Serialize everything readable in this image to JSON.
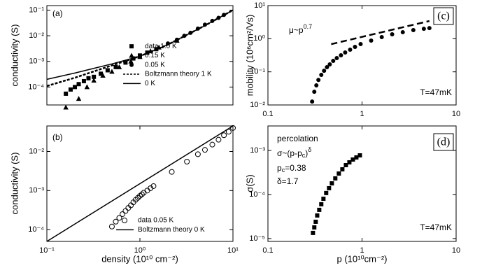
{
  "chart_data": [
    {
      "type": "scatter",
      "panel": "(a)",
      "ylabel": "conductivity (S)",
      "xscale": "log",
      "yscale": "log",
      "xlim": [
        0.1,
        10
      ],
      "ylim": [
        2e-05,
        0.15
      ],
      "yticks": [
        {
          "value": 0.1,
          "label": "10⁻¹"
        },
        {
          "value": 0.01,
          "label": "10⁻²"
        },
        {
          "value": 0.001,
          "label": "10⁻³"
        },
        {
          "value": 0.0001,
          "label": "10⁻⁴"
        }
      ],
      "legend": "lower right",
      "series": [
        {
          "name": "data 1.0 K",
          "marker": "square",
          "color": "#000000",
          "x": [
            0.16,
            0.18,
            0.2,
            0.22,
            0.25,
            0.28,
            0.32,
            0.38,
            0.45,
            0.55,
            0.7,
            0.85,
            1.0,
            1.2,
            1.5
          ],
          "values": [
            5.5e-05,
            8e-05,
            0.0001,
            0.00013,
            0.00017,
            0.00022,
            0.00025,
            0.00033,
            0.00045,
            0.0006,
            0.0009,
            0.0013,
            0.0017,
            0.0022,
            0.003
          ]
        },
        {
          "name": "0.15 K",
          "marker": "triangle",
          "color": "#000000",
          "x": [
            0.16,
            0.22,
            0.27,
            0.32,
            0.4,
            0.5,
            0.6,
            0.8,
            1.0,
            1.3,
            1.6,
            2.5
          ],
          "values": [
            1.6e-05,
            3.5e-05,
            0.0001,
            0.00018,
            0.00028,
            0.0004,
            0.0006,
            0.001,
            0.0015,
            0.0025,
            0.0035,
            0.0065
          ]
        },
        {
          "name": "0.05 K",
          "marker": "circle",
          "color": "#000000",
          "x": [
            2.0,
            2.5,
            3.0,
            3.5,
            4.2,
            5.0,
            6.0,
            7.0,
            8.0
          ],
          "values": [
            0.005,
            0.007,
            0.01,
            0.013,
            0.019,
            0.027,
            0.038,
            0.05,
            0.065
          ]
        },
        {
          "name": "Boltzmann theory 1 K",
          "style": "dashed",
          "color": "#000000",
          "x": [
            0.1,
            0.2,
            0.5,
            1,
            2,
            5,
            10
          ],
          "values": [
            0.00011,
            0.00023,
            0.0007,
            0.0016,
            0.0045,
            0.025,
            0.1
          ]
        },
        {
          "name": "0 K",
          "style": "solid",
          "color": "#000000",
          "x": [
            0.1,
            0.2,
            0.5,
            1,
            2,
            5,
            10
          ],
          "values": [
            0.0002,
            0.00035,
            0.0008,
            0.0016,
            0.0045,
            0.025,
            0.1
          ]
        }
      ]
    },
    {
      "type": "scatter",
      "panel": "(b)",
      "ylabel": "conductivity (S)",
      "xlabel": "density (10¹⁰ cm⁻²)",
      "xscale": "log",
      "yscale": "log",
      "xlim": [
        0.1,
        10
      ],
      "ylim": [
        5e-05,
        0.045
      ],
      "xticks": [
        {
          "value": 0.1,
          "label": "10⁻¹"
        },
        {
          "value": 1,
          "label": "10⁰"
        },
        {
          "value": 10,
          "label": "10¹"
        }
      ],
      "yticks": [
        {
          "value": 0.01,
          "label": "10⁻²"
        },
        {
          "value": 0.001,
          "label": "10⁻³"
        },
        {
          "value": 0.0001,
          "label": "10⁻⁴"
        }
      ],
      "legend": "lower right",
      "series": [
        {
          "name": "data 0.05 K",
          "marker": "open-circle",
          "color": "#000000",
          "x": [
            0.5,
            0.55,
            0.6,
            0.65,
            0.7,
            0.75,
            0.8,
            0.85,
            0.9,
            0.95,
            1.0,
            1.05,
            1.1,
            1.2,
            1.3,
            1.4,
            2.2,
            3.2,
            4.2,
            5,
            6,
            7,
            8,
            9,
            10
          ],
          "values": [
            0.00012,
            0.00016,
            0.0002,
            0.00025,
            0.0003,
            0.00036,
            0.00042,
            0.0005,
            0.00058,
            0.00065,
            0.00073,
            0.0008,
            0.00088,
            0.001,
            0.00115,
            0.0013,
            0.003,
            0.0055,
            0.0085,
            0.011,
            0.015,
            0.02,
            0.026,
            0.032,
            0.04
          ]
        },
        {
          "name": "Boltzmann theory 0 K",
          "style": "solid",
          "color": "#000000",
          "x": [
            0.1,
            1,
            10
          ],
          "values": [
            5e-05,
            0.0015,
            0.045
          ]
        }
      ]
    },
    {
      "type": "scatter",
      "panel": "(c)",
      "ylabel": "mobility (10⁶cm²/Vs)",
      "xscale": "log",
      "yscale": "log",
      "xlim": [
        0.1,
        10
      ],
      "ylim": [
        0.01,
        10
      ],
      "xticks": [
        0.1,
        1,
        10
      ],
      "yticks": [
        {
          "value": 10,
          "label": "10¹"
        },
        {
          "value": 1,
          "label": "10⁰"
        },
        {
          "value": 0.1,
          "label": "10⁻¹"
        },
        {
          "value": 0.01,
          "label": "10⁻²"
        }
      ],
      "annotations": {
        "law": [
          "μ~p",
          "0.7"
        ],
        "temperature": "T=47mK"
      },
      "series": [
        {
          "marker": "circle",
          "color": "#000000",
          "x": [
            0.295,
            0.311,
            0.327,
            0.344,
            0.369,
            0.395,
            0.424,
            0.454,
            0.494,
            0.539,
            0.597,
            0.662,
            0.747,
            0.842,
            0.966,
            1.25,
            1.62,
            2.09,
            2.71,
            3.51,
            4.54,
            5.2
          ],
          "values": [
            0.0127,
            0.025,
            0.039,
            0.057,
            0.081,
            0.108,
            0.138,
            0.168,
            0.214,
            0.26,
            0.316,
            0.384,
            0.467,
            0.566,
            0.687,
            0.877,
            1.12,
            1.36,
            1.57,
            1.82,
            2.0,
            2.1
          ]
        },
        {
          "style": "dashed",
          "color": "#000000",
          "x": [
            0.47,
            5.2
          ],
          "values": [
            0.687,
            3.43
          ]
        }
      ]
    },
    {
      "type": "scatter",
      "panel": "(d)",
      "ylabel": "σ(S)",
      "xlabel": "p (10¹⁰cm⁻²)",
      "xscale": "log",
      "yscale": "log",
      "xlim": [
        0.1,
        10
      ],
      "ylim": [
        8.6e-06,
        0.0036
      ],
      "xticks": [
        0.1,
        1,
        10
      ],
      "yticks": [
        {
          "value": 0.001,
          "label": "10⁻³"
        },
        {
          "value": 0.0001,
          "label": "10⁻⁴"
        },
        {
          "value": 1e-05,
          "label": "10⁻⁵"
        }
      ],
      "annotations": {
        "model": "percolation",
        "formula": [
          "σ~(p-p",
          "c",
          ")",
          "δ"
        ],
        "critical": [
          "p",
          "c",
          "=0.38"
        ],
        "exponent": "δ=1.7",
        "temperature": "T=47mK"
      },
      "series": [
        {
          "marker": "square",
          "color": "#000000",
          "x": [
            0.301,
            0.311,
            0.322,
            0.334,
            0.351,
            0.369,
            0.389,
            0.416,
            0.446,
            0.478,
            0.52,
            0.567,
            0.618,
            0.674,
            0.734,
            0.8,
            0.871,
            0.95
          ],
          "values": [
            1.34e-05,
            1.79e-05,
            2.4e-05,
            3.34e-05,
            4.48e-05,
            6e-05,
            8e-05,
            0.000108,
            0.000139,
            0.000179,
            0.000232,
            0.000299,
            0.000373,
            0.000464,
            0.000537,
            0.000622,
            0.000694,
            0.000774
          ]
        }
      ]
    }
  ]
}
